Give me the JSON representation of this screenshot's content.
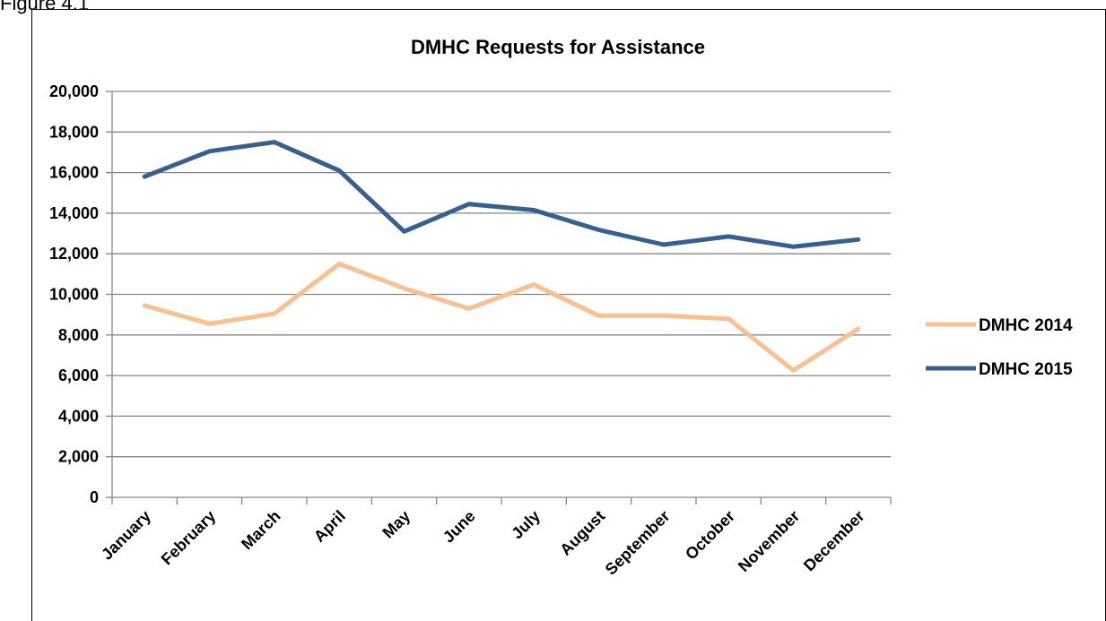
{
  "figure_label": "Figure 4.1",
  "chart_data": {
    "type": "line",
    "title": "DMHC Requests for Assistance",
    "xlabel": "",
    "ylabel": "",
    "categories": [
      "January",
      "February",
      "March",
      "April",
      "May",
      "June",
      "July",
      "August",
      "September",
      "October",
      "November",
      "December"
    ],
    "ylim": [
      0,
      20000
    ],
    "yticks": [
      0,
      2000,
      4000,
      6000,
      8000,
      10000,
      12000,
      14000,
      16000,
      18000,
      20000
    ],
    "ytick_labels": [
      "0",
      "2,000",
      "4,000",
      "6,000",
      "8,000",
      "10,000",
      "12,000",
      "14,000",
      "16,000",
      "18,000",
      "20,000"
    ],
    "grid": true,
    "legend_position": "right",
    "series": [
      {
        "name": "DMHC 2014",
        "color": "#FAC090",
        "values": [
          9450,
          8550,
          9050,
          11500,
          10300,
          9300,
          10480,
          8950,
          8950,
          8800,
          6250,
          8300
        ]
      },
      {
        "name": "DMHC 2015",
        "color": "#376092",
        "values": [
          15800,
          17050,
          17500,
          16100,
          13100,
          14450,
          14150,
          13180,
          12450,
          12850,
          12350,
          12700
        ]
      }
    ]
  }
}
